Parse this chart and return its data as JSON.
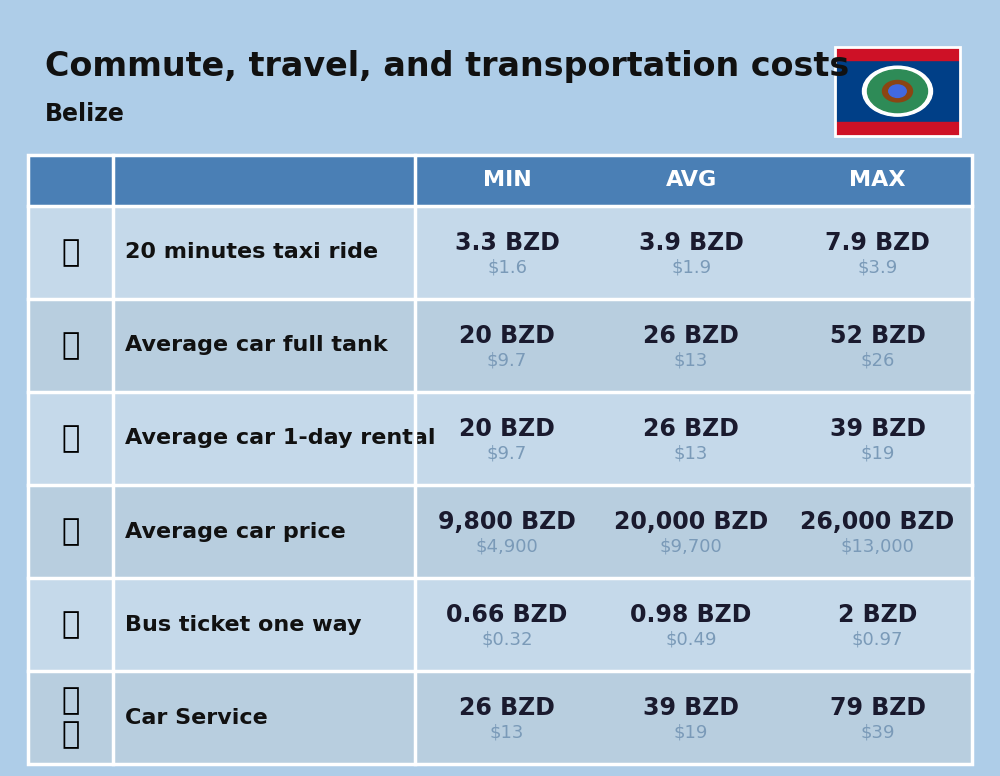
{
  "title": "Commute, travel, and transportation costs",
  "subtitle": "Belize",
  "bg_color": "#AECDE8",
  "header_bg_color": "#4A7FB5",
  "header_text_color": "#FFFFFF",
  "row_colors": [
    "#C5D9EA",
    "#B8CEDF"
  ],
  "divider_color": "#FFFFFF",
  "headers": [
    "MIN",
    "AVG",
    "MAX"
  ],
  "rows": [
    {
      "label": "20 minutes taxi ride",
      "min_bzd": "3.3 BZD",
      "min_usd": "$1.6",
      "avg_bzd": "3.9 BZD",
      "avg_usd": "$1.9",
      "max_bzd": "7.9 BZD",
      "max_usd": "$3.9"
    },
    {
      "label": "Average car full tank",
      "min_bzd": "20 BZD",
      "min_usd": "$9.7",
      "avg_bzd": "26 BZD",
      "avg_usd": "$13",
      "max_bzd": "52 BZD",
      "max_usd": "$26"
    },
    {
      "label": "Average car 1-day rental",
      "min_bzd": "20 BZD",
      "min_usd": "$9.7",
      "avg_bzd": "26 BZD",
      "avg_usd": "$13",
      "max_bzd": "39 BZD",
      "max_usd": "$19"
    },
    {
      "label": "Average car price",
      "min_bzd": "9,800 BZD",
      "min_usd": "$4,900",
      "avg_bzd": "20,000 BZD",
      "avg_usd": "$9,700",
      "max_bzd": "26,000 BZD",
      "max_usd": "$13,000"
    },
    {
      "label": "Bus ticket one way",
      "min_bzd": "0.66 BZD",
      "min_usd": "$0.32",
      "avg_bzd": "0.98 BZD",
      "avg_usd": "$0.49",
      "max_bzd": "2 BZD",
      "max_usd": "$0.97"
    },
    {
      "label": "Car Service",
      "min_bzd": "26 BZD",
      "min_usd": "$13",
      "avg_bzd": "39 BZD",
      "avg_usd": "$19",
      "max_bzd": "79 BZD",
      "max_usd": "$39"
    }
  ],
  "icon_texts": [
    "🚖",
    "⛽",
    "🚙",
    "🚗",
    "🚌",
    "🔧\n🚗"
  ],
  "title_fontsize": 24,
  "subtitle_fontsize": 17,
  "header_fontsize": 16,
  "label_fontsize": 16,
  "value_fontsize": 17,
  "usd_fontsize": 13,
  "value_color": "#1a1a2e",
  "usd_color": "#7A9AB8"
}
